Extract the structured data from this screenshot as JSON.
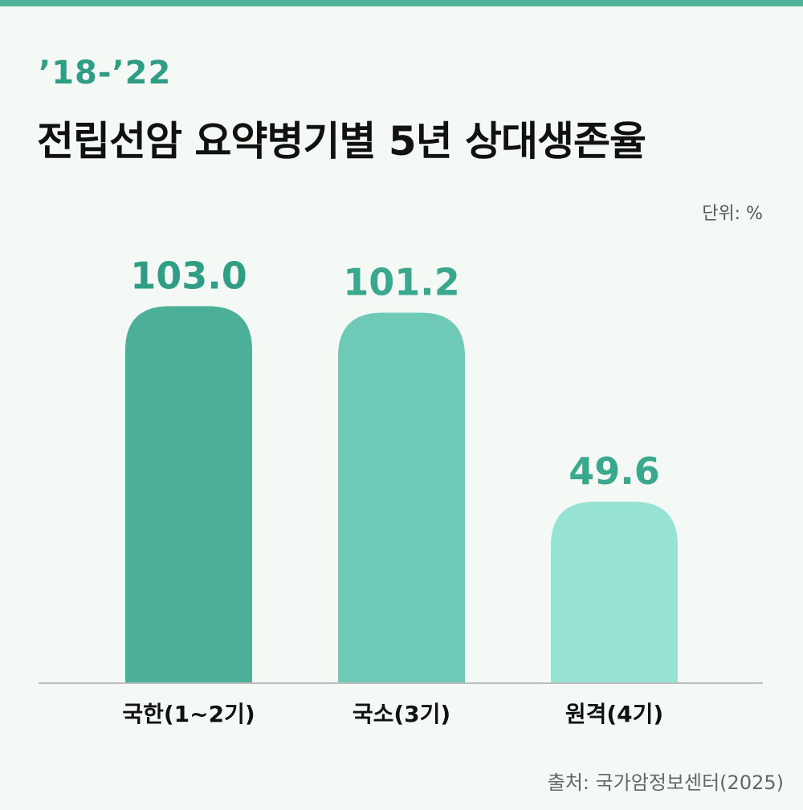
{
  "header": {
    "subtitle": "’18-’22",
    "title": "전립선암 요약병기별 5년 상대생존율"
  },
  "unit_label": "단위: %",
  "source": "출처: 국가암정보센터(2025)",
  "colors": {
    "accent": "#2f9e84",
    "bars": [
      "#4caf98",
      "#6ecab6",
      "#96e3d3"
    ],
    "value_labels": [
      "#2f9e84",
      "#3aa88d",
      "#3aa88d"
    ],
    "axis": "#bdbdbd",
    "background": "#f4f9f6"
  },
  "chart_data": {
    "type": "bar",
    "categories": [
      "국한(1~2기)",
      "국소(3기)",
      "원격(4기)"
    ],
    "values": [
      103.0,
      101.2,
      49.6
    ],
    "value_labels": [
      "103.0",
      "101.2",
      "49.6"
    ],
    "ylim": [
      0,
      110
    ],
    "grid": false,
    "legend": "none"
  }
}
